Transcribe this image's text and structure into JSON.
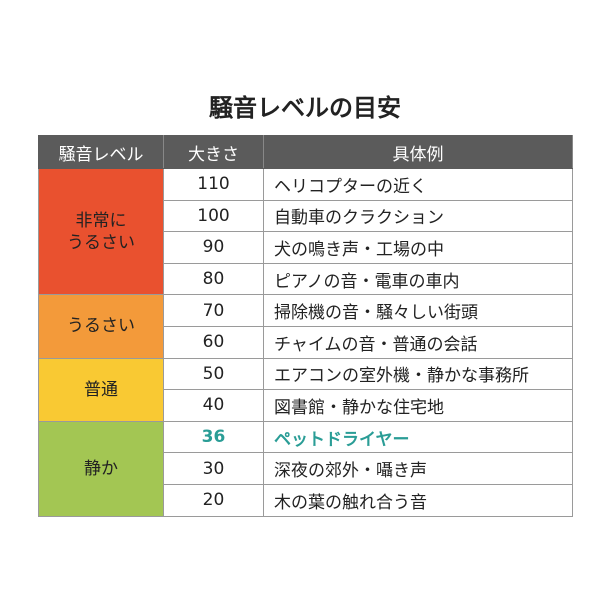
{
  "title": "騒音レベルの目安",
  "headers": [
    "騒音レベル",
    "大きさ",
    "具体例"
  ],
  "colors": {
    "header": "#5b5b5b",
    "highlight": "#2a9d96"
  },
  "groups": [
    {
      "label": "非常に\nうるさい",
      "color": "#e9512f",
      "rows": [
        {
          "value": "110",
          "example": "ヘリコプターの近く"
        },
        {
          "value": "100",
          "example": "自動車のクラクション"
        },
        {
          "value": "90",
          "example": "犬の鳴き声・工場の中"
        },
        {
          "value": "80",
          "example": "ピアノの音・電車の車内"
        }
      ]
    },
    {
      "label": "うるさい",
      "color": "#f39a3a",
      "rows": [
        {
          "value": "70",
          "example": "掃除機の音・騒々しい街頭"
        },
        {
          "value": "60",
          "example": "チャイムの音・普通の会話"
        }
      ]
    },
    {
      "label": "普通",
      "color": "#f9c933",
      "rows": [
        {
          "value": "50",
          "example": "エアコンの室外機・静かな事務所"
        },
        {
          "value": "40",
          "example": "図書館・静かな住宅地"
        }
      ]
    },
    {
      "label": "静か",
      "color": "#a3c653",
      "rows": [
        {
          "value": "36",
          "example": "ペットドライヤー",
          "highlight": true
        },
        {
          "value": "30",
          "example": "深夜の郊外・囁き声"
        },
        {
          "value": "20",
          "example": "木の葉の触れ合う音"
        }
      ]
    }
  ]
}
